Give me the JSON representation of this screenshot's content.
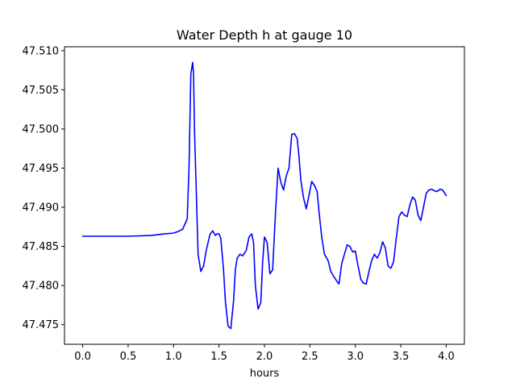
{
  "chart_data": {
    "type": "line",
    "title": "Water Depth h at gauge 10",
    "xlabel": "hours",
    "ylabel": "",
    "xlim": [
      -0.2,
      4.2
    ],
    "ylim": [
      47.4725,
      47.5105
    ],
    "xticks": [
      0.0,
      0.5,
      1.0,
      1.5,
      2.0,
      2.5,
      3.0,
      3.5,
      4.0
    ],
    "xtick_labels": [
      "0.0",
      "0.5",
      "1.0",
      "1.5",
      "2.0",
      "2.5",
      "3.0",
      "3.5",
      "4.0"
    ],
    "yticks": [
      47.475,
      47.48,
      47.485,
      47.49,
      47.495,
      47.5,
      47.505,
      47.51
    ],
    "ytick_labels": [
      "47.475",
      "47.480",
      "47.485",
      "47.490",
      "47.495",
      "47.500",
      "47.505",
      "47.510"
    ],
    "grid": false,
    "series": [
      {
        "color": "#0000ff",
        "x": [
          0.0,
          0.5,
          0.75,
          0.9,
          1.0,
          1.05,
          1.1,
          1.15,
          1.17,
          1.19,
          1.21,
          1.22,
          1.23,
          1.25,
          1.27,
          1.3,
          1.33,
          1.36,
          1.4,
          1.43,
          1.46,
          1.48,
          1.5,
          1.52,
          1.55,
          1.57,
          1.6,
          1.63,
          1.66,
          1.68,
          1.7,
          1.73,
          1.76,
          1.8,
          1.83,
          1.86,
          1.88,
          1.9,
          1.93,
          1.96,
          1.98,
          2.0,
          2.03,
          2.06,
          2.09,
          2.12,
          2.15,
          2.18,
          2.21,
          2.24,
          2.27,
          2.3,
          2.33,
          2.36,
          2.38,
          2.4,
          2.43,
          2.46,
          2.49,
          2.52,
          2.55,
          2.58,
          2.6,
          2.63,
          2.66,
          2.7,
          2.73,
          2.76,
          2.8,
          2.82,
          2.85,
          2.88,
          2.91,
          2.94,
          2.97,
          3.0,
          3.03,
          3.06,
          3.09,
          3.12,
          3.15,
          3.18,
          3.21,
          3.24,
          3.27,
          3.3,
          3.33,
          3.36,
          3.39,
          3.42,
          3.45,
          3.48,
          3.51,
          3.54,
          3.57,
          3.6,
          3.63,
          3.66,
          3.69,
          3.72,
          3.75,
          3.78,
          3.81,
          3.84,
          3.87,
          3.9,
          3.93,
          3.96,
          4.0
        ],
        "y": [
          47.4863,
          47.4863,
          47.4864,
          47.4866,
          47.4867,
          47.4869,
          47.4872,
          47.4885,
          47.495,
          47.507,
          47.5085,
          47.507,
          47.5,
          47.492,
          47.484,
          47.4818,
          47.4825,
          47.4845,
          47.4865,
          47.487,
          47.4864,
          47.4866,
          47.4866,
          47.486,
          47.482,
          47.478,
          47.4748,
          47.4745,
          47.478,
          47.482,
          47.4835,
          47.484,
          47.4838,
          47.4845,
          47.4862,
          47.4866,
          47.4855,
          47.48,
          47.477,
          47.4778,
          47.483,
          47.4862,
          47.4855,
          47.4815,
          47.482,
          47.489,
          47.495,
          47.4932,
          47.4922,
          47.494,
          47.495,
          47.4993,
          47.4994,
          47.4988,
          47.4965,
          47.4935,
          47.4912,
          47.4898,
          47.4915,
          47.4933,
          47.4928,
          47.492,
          47.4895,
          47.4862,
          47.484,
          47.4832,
          47.4818,
          47.4812,
          47.4805,
          47.4802,
          47.4828,
          47.484,
          47.4852,
          47.485,
          47.4843,
          47.4844,
          47.4825,
          47.4808,
          47.4803,
          47.4802,
          47.4818,
          47.4832,
          47.484,
          47.4835,
          47.4842,
          47.4856,
          47.4848,
          47.4825,
          47.4822,
          47.483,
          47.486,
          47.4888,
          47.4894,
          47.489,
          47.4888,
          47.4903,
          47.4913,
          47.4909,
          47.489,
          47.4883,
          47.49,
          47.4918,
          47.4922,
          47.4923,
          47.4921,
          47.492,
          47.4923,
          47.4922,
          47.4915
        ]
      }
    ]
  }
}
